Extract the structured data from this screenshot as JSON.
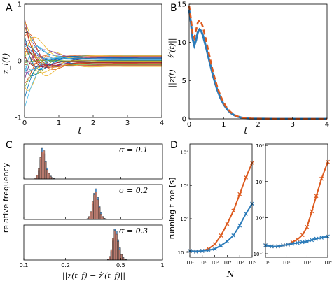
{
  "chart_data": [
    {
      "panel": "A",
      "type": "line",
      "ylabel": "z_i(t)",
      "xlabel": "t",
      "xlim": [
        0,
        4
      ],
      "ylim": [
        -1,
        1
      ],
      "xticks": [
        0,
        1,
        2,
        3,
        4
      ],
      "yticks": [
        -1,
        -0.5,
        0,
        0.5,
        1
      ],
      "ytick_labels": [
        "-1",
        "",
        "0",
        "",
        "1"
      ],
      "grid": false,
      "settle": [
        0.62,
        0.48,
        0.91,
        0.33,
        0.77,
        0.15,
        0.95,
        0.56,
        0.42,
        0.84,
        -0.62,
        -0.48,
        -0.91,
        -0.33,
        -0.77,
        -0.15,
        -0.95,
        -0.56,
        -0.42,
        -0.84,
        0.27,
        -0.27,
        0.7,
        -0.7,
        0.05,
        -0.05,
        0.38,
        -0.38,
        0.88,
        -0.88
      ],
      "final": [
        0.1,
        0.08,
        0.06,
        0.05,
        0.04,
        0.03,
        0.02,
        0.01,
        0.0,
        -0.01,
        -0.02,
        -0.03,
        -0.04,
        -0.05,
        -0.06,
        -0.08,
        -0.1,
        0.07,
        -0.07,
        0.02,
        -0.02,
        0.04,
        -0.04,
        0.09,
        -0.09,
        0.0,
        0.03,
        -0.03,
        0.06,
        -0.06
      ]
    },
    {
      "panel": "B",
      "type": "line",
      "ylabel": "||z(t) − ẑ′(t)||",
      "xlabel": "t",
      "xlim": [
        0,
        4
      ],
      "ylim": [
        0,
        15
      ],
      "xticks": [
        0,
        1,
        2,
        3,
        4
      ],
      "yticks": [
        0,
        5,
        10,
        15
      ],
      "grid": false,
      "series": [
        {
          "color": "#2b7bb9",
          "style": "solid",
          "x": [
            0,
            0.05,
            0.1,
            0.15,
            0.2,
            0.25,
            0.3,
            0.35,
            0.4,
            0.5,
            0.6,
            0.7,
            0.8,
            0.9,
            1.0,
            1.1,
            1.2,
            1.3,
            1.4,
            1.5,
            1.6,
            1.8,
            2.0,
            2.5,
            3.0,
            3.5,
            4.0
          ],
          "y": [
            14.3,
            12.6,
            10.5,
            9.6,
            10.3,
            11.3,
            11.7,
            11.5,
            10.9,
            9.2,
            7.3,
            5.5,
            4.0,
            2.8,
            1.9,
            1.25,
            0.8,
            0.5,
            0.3,
            0.18,
            0.1,
            0.04,
            0.02,
            0.0,
            0.0,
            0.0,
            0.0
          ]
        },
        {
          "color": "#dd5a1e",
          "style": "dashed",
          "x": [
            0,
            0.05,
            0.1,
            0.15,
            0.2,
            0.25,
            0.3,
            0.35,
            0.4,
            0.5,
            0.6,
            0.7,
            0.8,
            0.9,
            1.0,
            1.1,
            1.2,
            1.3,
            1.4,
            1.5,
            1.6,
            1.8,
            2.0,
            2.5,
            3.0,
            3.5,
            4.0
          ],
          "y": [
            14.8,
            13.1,
            11.2,
            10.6,
            11.6,
            12.6,
            12.9,
            12.6,
            12.0,
            10.1,
            8.0,
            6.0,
            4.4,
            3.1,
            2.1,
            1.4,
            0.9,
            0.55,
            0.33,
            0.2,
            0.11,
            0.05,
            0.02,
            0.0,
            0.0,
            0.0,
            0.0
          ]
        }
      ]
    },
    {
      "panel": "C",
      "type": "bar",
      "xlabel": "||z(t_f) − ẑ′(t_f)||",
      "ylabel": "relative frequency",
      "xscale": "log",
      "xlim": [
        0.1,
        1
      ],
      "xtick_labels": [
        "0.1",
        "0.2",
        "0.5",
        "1"
      ],
      "xticks": [
        0.1,
        0.2,
        0.5,
        1
      ],
      "bin_ratio": 1.028,
      "colors": {
        "blue": "#5b9bd5",
        "orange": "#c9745c"
      },
      "subplots": [
        {
          "sigma_label": "σ = 0.1",
          "bin_start": 0.12,
          "blue": [
            0.04,
            0.1,
            0.28,
            0.62,
            1.0,
            0.82,
            0.58,
            0.36,
            0.2,
            0.1,
            0.05,
            0.02
          ],
          "orange": [
            0.03,
            0.12,
            0.34,
            0.7,
            0.88,
            0.92,
            0.55,
            0.3,
            0.18,
            0.08,
            0.04,
            0.01
          ]
        },
        {
          "sigma_label": "σ = 0.2",
          "bin_start": 0.285,
          "blue": [
            0.03,
            0.08,
            0.22,
            0.5,
            0.86,
            1.0,
            0.72,
            0.44,
            0.22,
            0.1,
            0.04,
            0.02
          ],
          "orange": [
            0.02,
            0.1,
            0.26,
            0.58,
            0.8,
            0.9,
            0.64,
            0.4,
            0.18,
            0.08,
            0.03,
            0.01
          ]
        },
        {
          "sigma_label": "σ = 0.3",
          "bin_start": 0.4,
          "blue": [
            0.03,
            0.1,
            0.28,
            0.62,
            1.0,
            0.94,
            0.66,
            0.4,
            0.2,
            0.1,
            0.04,
            0.02
          ],
          "orange": [
            0.02,
            0.12,
            0.34,
            0.72,
            0.96,
            0.84,
            0.6,
            0.34,
            0.18,
            0.08,
            0.03,
            0.01
          ]
        }
      ]
    },
    {
      "panel": "D",
      "type": "line",
      "ylabel": "running time [s]",
      "xlabel": "N",
      "xscale": "log",
      "yscale": "log",
      "subplots": [
        {
          "xlim": [
            10,
            1000000
          ],
          "ylim": [
            0.005,
            30000
          ],
          "xticks": [
            10,
            100,
            1000,
            10000,
            100000,
            1000000
          ],
          "xtick_labels": [
            "10¹",
            "10²",
            "10³",
            "10⁴",
            "10⁵",
            "10⁶"
          ],
          "yticks": [
            0.01,
            1,
            100,
            10000
          ],
          "ytick_labels": [
            "10⁻²",
            "10⁰",
            "10²",
            "10⁴"
          ],
          "series": [
            {
              "color": "#dd5a1e",
              "x": [
                10,
                31.6,
                100,
                316,
                1000,
                3160,
                10000,
                31600,
                100000,
                316000,
                1000000
              ],
              "y": [
                0.012,
                0.011,
                0.012,
                0.016,
                0.03,
                0.1,
                0.5,
                3,
                30,
                300,
                2200
              ]
            },
            {
              "color": "#2b7bb9",
              "x": [
                10,
                31.6,
                100,
                316,
                1000,
                3160,
                10000,
                31600,
                100000,
                316000,
                1000000
              ],
              "y": [
                0.012,
                0.011,
                0.012,
                0.013,
                0.016,
                0.025,
                0.045,
                0.1,
                0.4,
                2,
                8
              ]
            }
          ]
        },
        {
          "xlim": [
            10,
            10000
          ],
          "ylim": [
            0.08,
            110
          ],
          "xticks": [
            10,
            100,
            1000,
            10000
          ],
          "xtick_labels": [
            "10¹",
            "10²",
            "10³",
            "10⁴"
          ],
          "yticks": [
            0.1,
            1,
            10,
            100
          ],
          "ytick_labels": [
            "10⁻¹",
            "10⁰",
            "10¹",
            "10²"
          ],
          "series": [
            {
              "color": "#dd5a1e",
              "x": [
                10,
                20,
                40,
                70,
                120,
                200,
                350,
                600,
                1000,
                1700,
                2800,
                5000,
                10000
              ],
              "y": [
                0.17,
                0.16,
                0.16,
                0.17,
                0.18,
                0.21,
                0.25,
                0.33,
                0.55,
                1.5,
                4,
                12,
                35
              ]
            },
            {
              "color": "#2b7bb9",
              "x": [
                10,
                20,
                40,
                70,
                120,
                200,
                350,
                600,
                1000,
                1700,
                2800,
                5000,
                10000
              ],
              "y": [
                0.17,
                0.16,
                0.16,
                0.17,
                0.18,
                0.19,
                0.2,
                0.21,
                0.22,
                0.24,
                0.26,
                0.28,
                0.3
              ]
            }
          ]
        }
      ]
    }
  ]
}
